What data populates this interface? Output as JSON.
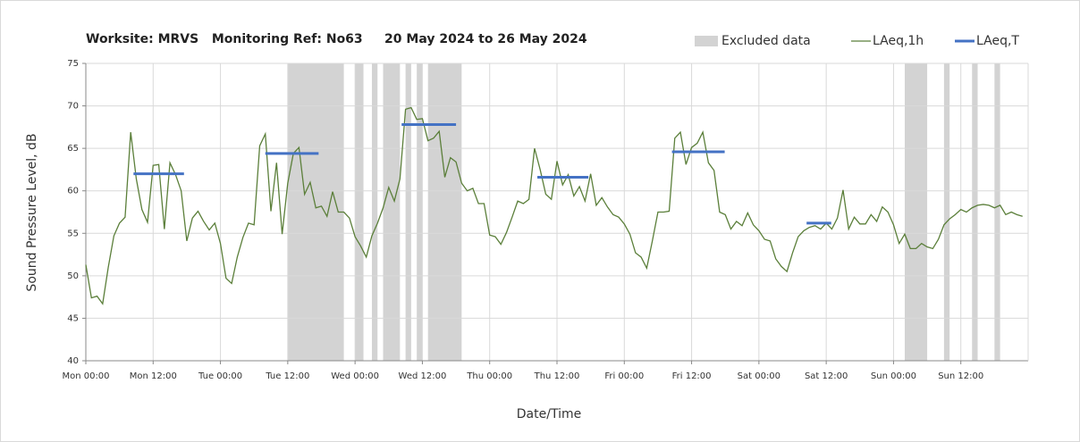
{
  "chart_data": {
    "type": "line",
    "title": "Worksite: MRVS   Monitoring Ref: No63     20 May 2024 to 26 May 2024",
    "y_label": "Sound Pressure Level, dB",
    "x_label": "Date/Time",
    "xlim": [
      0,
      168
    ],
    "ylim": [
      40,
      75
    ],
    "yticks": [
      40,
      45,
      50,
      55,
      60,
      65,
      70,
      75
    ],
    "xticks": [
      {
        "value": 0,
        "label": "Mon 00:00"
      },
      {
        "value": 12,
        "label": "Mon 12:00"
      },
      {
        "value": 24,
        "label": "Tue 00:00"
      },
      {
        "value": 36,
        "label": "Tue 12:00"
      },
      {
        "value": 48,
        "label": "Wed 00:00"
      },
      {
        "value": 60,
        "label": "Wed 12:00"
      },
      {
        "value": 72,
        "label": "Thu 00:00"
      },
      {
        "value": 84,
        "label": "Thu 12:00"
      },
      {
        "value": 96,
        "label": "Fri 00:00"
      },
      {
        "value": 108,
        "label": "Fri 12:00"
      },
      {
        "value": 120,
        "label": "Sat 00:00"
      },
      {
        "value": 132,
        "label": "Sat 12:00"
      },
      {
        "value": 144,
        "label": "Sun 00:00"
      },
      {
        "value": 156,
        "label": "Sun 12:00"
      }
    ],
    "grid": true,
    "legend": "top-right",
    "excluded": {
      "name": "Excluded data",
      "color": "#d3d3d3",
      "ranges": [
        [
          36,
          46
        ],
        [
          48,
          49.5
        ],
        [
          51,
          52
        ],
        [
          53,
          56
        ],
        [
          57,
          58
        ],
        [
          59,
          60
        ],
        [
          61,
          67
        ],
        [
          146,
          150
        ],
        [
          153,
          154
        ],
        [
          158,
          159
        ],
        [
          162,
          163
        ]
      ]
    },
    "x": [
      0,
      1,
      2,
      3,
      4,
      5,
      6,
      7,
      8,
      9,
      10,
      11,
      12,
      13,
      14,
      15,
      16,
      17,
      18,
      19,
      20,
      21,
      22,
      23,
      24,
      25,
      26,
      27,
      28,
      29,
      30,
      31,
      32,
      33,
      34,
      35,
      36,
      37,
      38,
      39,
      40,
      41,
      42,
      43,
      44,
      45,
      46,
      47,
      48,
      49,
      50,
      51,
      52,
      53,
      54,
      55,
      56,
      57,
      58,
      59,
      60,
      61,
      62,
      63,
      64,
      65,
      66,
      67,
      68,
      69,
      70,
      71,
      72,
      73,
      74,
      75,
      76,
      77,
      78,
      79,
      80,
      81,
      82,
      83,
      84,
      85,
      86,
      87,
      88,
      89,
      90,
      91,
      92,
      93,
      94,
      95,
      96,
      97,
      98,
      99,
      100,
      101,
      102,
      103,
      104,
      105,
      106,
      107,
      108,
      109,
      110,
      111,
      112,
      113,
      114,
      115,
      116,
      117,
      118,
      119,
      120,
      121,
      122,
      123,
      124,
      125,
      126,
      127,
      128,
      129,
      130,
      131,
      132,
      133,
      134,
      135,
      136,
      137,
      138,
      139,
      140,
      141,
      142,
      143,
      144,
      145,
      146,
      147,
      148,
      149,
      150,
      151,
      152,
      153,
      154,
      155,
      156,
      157,
      158,
      159,
      160,
      161,
      162,
      163,
      164,
      165,
      166,
      167
    ],
    "series": [
      {
        "name": "LAeq,1h",
        "color": "#5b7f3a",
        "values": [
          51.3,
          47.4,
          47.6,
          46.7,
          51,
          54.7,
          56.2,
          56.9,
          66.9,
          61.4,
          57.8,
          56.3,
          63.0,
          63.1,
          55.5,
          63.3,
          61.9,
          60,
          54.1,
          56.8,
          57.6,
          56.4,
          55.4,
          56.2,
          53.8,
          49.7,
          49.1,
          52.2,
          54.5,
          56.2,
          56,
          65.3,
          66.7,
          57.6,
          63.3,
          54.9,
          60.9,
          64.4,
          65.1,
          59.6,
          61,
          58,
          58.2,
          57,
          59.9,
          57.5,
          57.5,
          56.8,
          54.6,
          53.5,
          52.2,
          54.7,
          56.2,
          58,
          60.4,
          58.8,
          61.4,
          69.6,
          69.8,
          68.4,
          68.5,
          65.9,
          66.2,
          67,
          61.6,
          63.9,
          63.4,
          60.9,
          60,
          60.3,
          58.5,
          58.5,
          54.8,
          54.6,
          53.7,
          55.1,
          56.9,
          58.8,
          58.5,
          59,
          65,
          62.5,
          59.6,
          59,
          63.5,
          60.7,
          61.9,
          59.4,
          60.5,
          58.8,
          62,
          58.3,
          59.2,
          58.1,
          57.2,
          56.9,
          56.1,
          54.9,
          52.7,
          52.2,
          50.9,
          54.1,
          57.5,
          57.5,
          57.6,
          66.2,
          66.9,
          63.1,
          65.1,
          65.6,
          66.9,
          63.3,
          62.4,
          57.5,
          57.2,
          55.5,
          56.4,
          55.9,
          57.4,
          56,
          55.3,
          54.3,
          54.1,
          52,
          51.1,
          50.5,
          52.7,
          54.6,
          55.3,
          55.7,
          55.9,
          55.5,
          56.2,
          55.5,
          56.8,
          60.1,
          55.5,
          56.9,
          56.1,
          56.1,
          57.2,
          56.4,
          58.1,
          57.5,
          56,
          53.8,
          54.9,
          53.2,
          53.2,
          53.8,
          53.4,
          53.2,
          54.3,
          56,
          56.7,
          57.2,
          57.8,
          57.5,
          58,
          58.3,
          58.4,
          58.3,
          58,
          58.3,
          57.2,
          57.5,
          57.2,
          57
        ]
      },
      {
        "name": "LAeq,T",
        "color": "#4472c4",
        "segments": [
          {
            "x": [
              8.5,
              17.5
            ],
            "value": 62
          },
          {
            "x": [
              32,
              41.5
            ],
            "value": 64.4
          },
          {
            "x": [
              56.3,
              66
            ],
            "value": 67.8
          },
          {
            "x": [
              80.5,
              89.6
            ],
            "value": 61.6
          },
          {
            "x": [
              104.5,
              113.9
            ],
            "value": 64.6
          },
          {
            "x": [
              128.5,
              132.9
            ],
            "value": 56.2
          }
        ]
      }
    ]
  }
}
